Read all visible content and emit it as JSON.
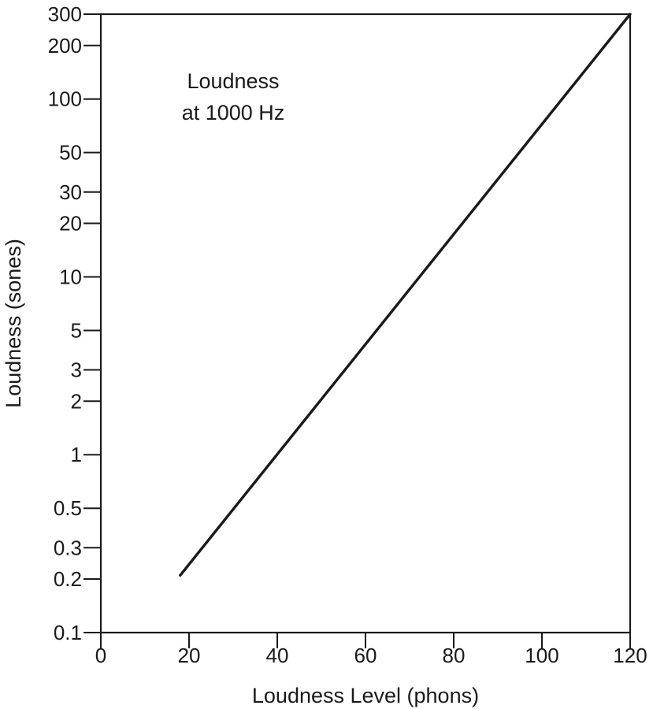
{
  "chart_data": {
    "type": "line",
    "title": "",
    "xlabel": "Loudness Level (phons)",
    "ylabel": "Loudness (sones)",
    "xlim": [
      0,
      120
    ],
    "ylim": [
      0.1,
      300
    ],
    "yscale": "log",
    "grid": false,
    "legend": "none",
    "x_ticks": [
      {
        "value": 0,
        "label": "0"
      },
      {
        "value": 20,
        "label": "20"
      },
      {
        "value": 40,
        "label": "40"
      },
      {
        "value": 60,
        "label": "60"
      },
      {
        "value": 80,
        "label": "80"
      },
      {
        "value": 100,
        "label": "100"
      },
      {
        "value": 120,
        "label": "120"
      }
    ],
    "y_ticks": [
      {
        "value": 0.1,
        "label": "0.1"
      },
      {
        "value": 0.2,
        "label": "0.2"
      },
      {
        "value": 0.3,
        "label": "0.3"
      },
      {
        "value": 0.5,
        "label": "0.5"
      },
      {
        "value": 1,
        "label": "1"
      },
      {
        "value": 2,
        "label": "2"
      },
      {
        "value": 3,
        "label": "3"
      },
      {
        "value": 5,
        "label": "5"
      },
      {
        "value": 10,
        "label": "10"
      },
      {
        "value": 20,
        "label": "20"
      },
      {
        "value": 30,
        "label": "30"
      },
      {
        "value": 50,
        "label": "50"
      },
      {
        "value": 100,
        "label": "100"
      },
      {
        "value": 200,
        "label": "200"
      },
      {
        "value": 300,
        "label": "300"
      }
    ],
    "annotation": {
      "lines": [
        "Loudness",
        "at 1000 Hz"
      ]
    },
    "series": [
      {
        "x": [
          18,
          120
        ],
        "y": [
          0.21,
          300
        ],
        "color": "#1a1a1a"
      }
    ]
  }
}
